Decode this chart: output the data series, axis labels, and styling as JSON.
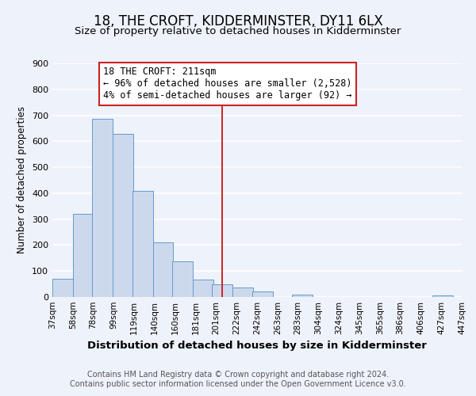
{
  "title": "18, THE CROFT, KIDDERMINSTER, DY11 6LX",
  "subtitle": "Size of property relative to detached houses in Kidderminster",
  "xlabel": "Distribution of detached houses by size in Kidderminster",
  "ylabel": "Number of detached properties",
  "bar_left_edges": [
    37,
    58,
    78,
    99,
    119,
    140,
    160,
    181,
    201,
    222,
    242,
    263,
    283,
    304,
    324,
    345,
    365,
    386,
    406,
    427
  ],
  "bar_heights": [
    70,
    320,
    685,
    628,
    410,
    210,
    138,
    68,
    48,
    38,
    22,
    0,
    10,
    0,
    0,
    0,
    0,
    0,
    0,
    5
  ],
  "bin_width": 21,
  "bar_color": "#ccd9ed",
  "bar_edge_color": "#6699cc",
  "tick_labels": [
    "37sqm",
    "58sqm",
    "78sqm",
    "99sqm",
    "119sqm",
    "140sqm",
    "160sqm",
    "181sqm",
    "201sqm",
    "222sqm",
    "242sqm",
    "263sqm",
    "283sqm",
    "304sqm",
    "324sqm",
    "345sqm",
    "365sqm",
    "386sqm",
    "406sqm",
    "427sqm",
    "447sqm"
  ],
  "vline_x": 211,
  "vline_color": "#cc2222",
  "annotation_title": "18 THE CROFT: 211sqm",
  "annotation_line1": "← 96% of detached houses are smaller (2,528)",
  "annotation_line2": "4% of semi-detached houses are larger (92) →",
  "ylim": [
    0,
    900
  ],
  "yticks": [
    0,
    100,
    200,
    300,
    400,
    500,
    600,
    700,
    800,
    900
  ],
  "footer_line1": "Contains HM Land Registry data © Crown copyright and database right 2024.",
  "footer_line2": "Contains public sector information licensed under the Open Government Licence v3.0.",
  "background_color": "#eef2fa",
  "plot_bg_color": "#eef2fa",
  "grid_color": "#ffffff",
  "title_fontsize": 12,
  "subtitle_fontsize": 9.5,
  "xlabel_fontsize": 9.5,
  "ylabel_fontsize": 8.5,
  "footer_fontsize": 7,
  "annot_fontsize": 8.5,
  "tick_fontsize": 7.5
}
